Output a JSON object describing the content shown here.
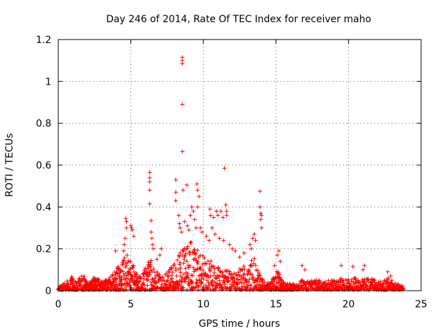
{
  "chart_data": {
    "type": "scatter",
    "title": "Day 246 of 2014, Rate Of TEC Index for receiver maho",
    "xlabel": "GPS time / hours",
    "ylabel": "ROTI / TECUs",
    "xlim": [
      0,
      25
    ],
    "ylim": [
      0,
      1.2
    ],
    "xticks": [
      0,
      5,
      10,
      15,
      20,
      25
    ],
    "xtick_labels": [
      "0",
      "5",
      "10",
      "15",
      "20",
      "25"
    ],
    "yticks": [
      0,
      0.2,
      0.4,
      0.6,
      0.8,
      1,
      1.2
    ],
    "ytick_labels": [
      "0",
      "0.2",
      "0.4",
      "0.6",
      "0.8",
      "1",
      "1.2"
    ],
    "grid": true,
    "marker": "+",
    "series_color": "#ff0000",
    "series": [
      {
        "name": "ROTI",
        "points": [
          [
            8.55,
            1.115
          ],
          [
            8.55,
            1.1
          ],
          [
            8.55,
            1.085
          ],
          [
            8.55,
            0.89
          ],
          [
            8.55,
            0.665
          ],
          [
            11.45,
            0.585
          ],
          [
            6.3,
            0.565
          ],
          [
            6.3,
            0.54
          ],
          [
            6.3,
            0.52
          ],
          [
            6.3,
            0.48
          ],
          [
            6.3,
            0.415
          ],
          [
            8.1,
            0.53
          ],
          [
            8.1,
            0.47
          ],
          [
            8.1,
            0.43
          ],
          [
            8.6,
            0.48
          ],
          [
            8.85,
            0.505
          ],
          [
            9.55,
            0.51
          ],
          [
            9.6,
            0.48
          ],
          [
            9.7,
            0.45
          ],
          [
            9.6,
            0.4
          ],
          [
            13.9,
            0.475
          ],
          [
            13.9,
            0.4
          ],
          [
            13.95,
            0.37
          ],
          [
            14.0,
            0.36
          ],
          [
            13.95,
            0.34
          ],
          [
            14.0,
            0.3
          ],
          [
            11.55,
            0.41
          ],
          [
            11.6,
            0.38
          ],
          [
            11.6,
            0.36
          ],
          [
            11.2,
            0.38
          ],
          [
            11.35,
            0.35
          ],
          [
            10.45,
            0.39
          ],
          [
            10.5,
            0.36
          ],
          [
            10.7,
            0.35
          ],
          [
            10.9,
            0.38
          ],
          [
            11.0,
            0.36
          ],
          [
            4.65,
            0.345
          ],
          [
            4.7,
            0.33
          ],
          [
            4.7,
            0.3
          ],
          [
            5.0,
            0.31
          ],
          [
            5.05,
            0.3
          ],
          [
            5.1,
            0.29
          ],
          [
            5.2,
            0.26
          ],
          [
            3.95,
            0.19
          ],
          [
            4.6,
            0.25
          ],
          [
            4.55,
            0.22
          ],
          [
            4.5,
            0.19
          ],
          [
            6.4,
            0.335
          ],
          [
            6.4,
            0.28
          ],
          [
            6.45,
            0.25
          ],
          [
            6.5,
            0.22
          ],
          [
            6.55,
            0.2
          ],
          [
            7.1,
            0.2
          ],
          [
            7.0,
            0.17
          ],
          [
            6.8,
            0.15
          ],
          [
            8.3,
            0.36
          ],
          [
            8.35,
            0.32
          ],
          [
            8.4,
            0.3
          ],
          [
            8.5,
            0.28
          ],
          [
            8.7,
            0.33
          ],
          [
            8.9,
            0.31
          ],
          [
            9.0,
            0.29
          ],
          [
            9.2,
            0.4
          ],
          [
            9.3,
            0.38
          ],
          [
            9.1,
            0.36
          ],
          [
            9.4,
            0.34
          ],
          [
            9.5,
            0.3
          ],
          [
            9.8,
            0.3
          ],
          [
            9.9,
            0.28
          ],
          [
            10.2,
            0.26
          ],
          [
            10.4,
            0.24
          ],
          [
            10.6,
            0.3
          ],
          [
            10.8,
            0.27
          ],
          [
            11.1,
            0.25
          ],
          [
            11.4,
            0.24
          ],
          [
            11.8,
            0.22
          ],
          [
            12.0,
            0.2
          ],
          [
            12.2,
            0.19
          ],
          [
            12.5,
            0.16
          ],
          [
            12.8,
            0.18
          ],
          [
            13.2,
            0.22
          ],
          [
            13.4,
            0.25
          ],
          [
            13.5,
            0.27
          ],
          [
            13.6,
            0.24
          ],
          [
            13.3,
            0.2
          ],
          [
            15.2,
            0.19
          ],
          [
            15.1,
            0.17
          ],
          [
            15.3,
            0.14
          ],
          [
            14.9,
            0.12
          ],
          [
            16.8,
            0.12
          ],
          [
            17.0,
            0.1
          ],
          [
            19.5,
            0.12
          ],
          [
            20.3,
            0.115
          ],
          [
            21.1,
            0.12
          ],
          [
            21.0,
            0.1
          ],
          [
            22.7,
            0.09
          ],
          [
            22.9,
            0.07
          ]
        ],
        "envelope": [
          [
            0.0,
            0.015
          ],
          [
            0.4,
            0.03
          ],
          [
            0.9,
            0.07
          ],
          [
            1.2,
            0.04
          ],
          [
            1.7,
            0.08
          ],
          [
            2.0,
            0.03
          ],
          [
            2.3,
            0.05
          ],
          [
            2.6,
            0.07
          ],
          [
            3.0,
            0.04
          ],
          [
            3.4,
            0.05
          ],
          [
            3.8,
            0.08
          ],
          [
            4.1,
            0.11
          ],
          [
            4.4,
            0.14
          ],
          [
            4.8,
            0.19
          ],
          [
            5.2,
            0.12
          ],
          [
            5.5,
            0.06
          ],
          [
            5.9,
            0.09
          ],
          [
            6.3,
            0.16
          ],
          [
            6.7,
            0.1
          ],
          [
            7.2,
            0.07
          ],
          [
            7.6,
            0.09
          ],
          [
            8.0,
            0.13
          ],
          [
            8.4,
            0.18
          ],
          [
            8.8,
            0.21
          ],
          [
            9.2,
            0.24
          ],
          [
            9.6,
            0.19
          ],
          [
            10.0,
            0.16
          ],
          [
            10.5,
            0.14
          ],
          [
            11.0,
            0.12
          ],
          [
            11.5,
            0.1
          ],
          [
            12.0,
            0.08
          ],
          [
            12.5,
            0.1
          ],
          [
            13.0,
            0.13
          ],
          [
            13.5,
            0.16
          ],
          [
            13.9,
            0.07
          ],
          [
            14.3,
            0.03
          ],
          [
            14.7,
            0.04
          ],
          [
            15.1,
            0.1
          ],
          [
            15.4,
            0.05
          ],
          [
            15.8,
            0.03
          ],
          [
            16.3,
            0.03
          ],
          [
            16.8,
            0.05
          ],
          [
            17.3,
            0.04
          ],
          [
            17.8,
            0.05
          ],
          [
            18.3,
            0.04
          ],
          [
            18.8,
            0.05
          ],
          [
            19.3,
            0.06
          ],
          [
            19.8,
            0.05
          ],
          [
            20.3,
            0.06
          ],
          [
            20.8,
            0.05
          ],
          [
            21.3,
            0.06
          ],
          [
            21.8,
            0.05
          ],
          [
            22.3,
            0.04
          ],
          [
            22.8,
            0.06
          ],
          [
            23.3,
            0.03
          ],
          [
            23.8,
            0.02
          ]
        ]
      }
    ]
  }
}
